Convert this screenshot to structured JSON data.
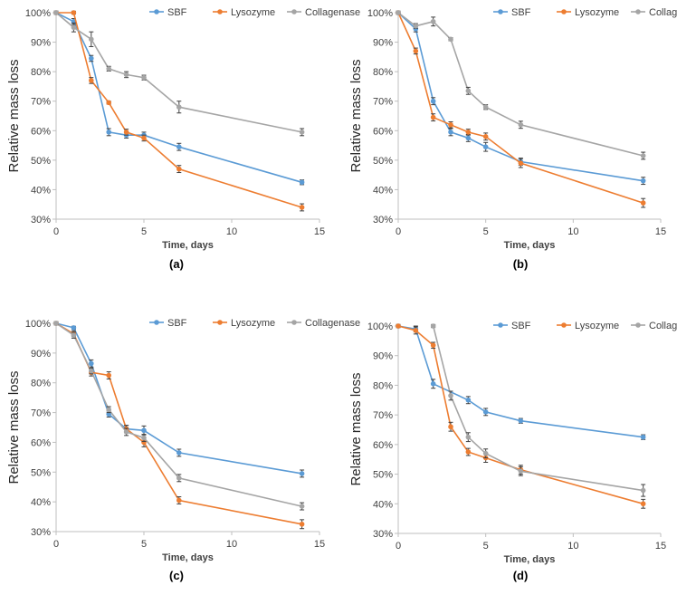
{
  "figure": {
    "colors": {
      "SBF": "#5B9BD5",
      "Lysozyme": "#ED7D31",
      "Collagenase": "#A5A5A5"
    }
  },
  "chart_data": [
    {
      "type": "line",
      "panel_label": "(a)",
      "xlabel": "Time, days",
      "ylabel": "Relative mass loss",
      "xlim": [
        0,
        15
      ],
      "ylim": [
        30,
        100
      ],
      "xticks": [
        "0",
        "5",
        "10",
        "15"
      ],
      "yticks": [
        "30%",
        "40%",
        "50%",
        "60%",
        "70%",
        "80%",
        "90%",
        "100%"
      ],
      "legend": [
        "SBF",
        "Lysozyme",
        "Collagenase"
      ],
      "series": [
        {
          "name": "SBF",
          "x": [
            0,
            1,
            2,
            3,
            4,
            5,
            7,
            14
          ],
          "values": [
            100,
            97,
            84.5,
            59.5,
            58.5,
            58.5,
            54.5,
            42.5
          ],
          "errors": [
            0.5,
            1,
            1,
            1.2,
            1,
            1,
            1.2,
            0.8
          ]
        },
        {
          "name": "Lysozyme",
          "x": [
            0,
            1,
            2,
            3,
            4,
            5,
            7,
            14
          ],
          "values": [
            100,
            100,
            77,
            69.5,
            59.5,
            57.5,
            47,
            34
          ],
          "errors": [
            0.5,
            0.5,
            1,
            0.5,
            1,
            1,
            1.2,
            1.2
          ]
        },
        {
          "name": "Collagenase",
          "x": [
            0,
            1,
            2,
            3,
            4,
            5,
            7,
            14
          ],
          "values": [
            100,
            95,
            91,
            81,
            79,
            78,
            68,
            59.5
          ],
          "errors": [
            0.5,
            1.5,
            2.5,
            0.8,
            1,
            0.8,
            2,
            1.2
          ]
        }
      ]
    },
    {
      "type": "line",
      "panel_label": "(b)",
      "xlabel": "Time, days",
      "ylabel": "Relative mass loss",
      "xlim": [
        0,
        15
      ],
      "ylim": [
        30,
        100
      ],
      "xticks": [
        "0",
        "5",
        "10",
        "15"
      ],
      "yticks": [
        "30%",
        "40%",
        "50%",
        "60%",
        "70%",
        "80%",
        "90%",
        "100%"
      ],
      "legend": [
        "SBF",
        "Lysozyme",
        "Collagenase"
      ],
      "series": [
        {
          "name": "SBF",
          "x": [
            0,
            1,
            2,
            3,
            4,
            5,
            7,
            14
          ],
          "values": [
            100,
            94.5,
            70,
            59.5,
            57.5,
            54.5,
            49.5,
            43
          ],
          "errors": [
            0.5,
            1,
            1.2,
            1.2,
            1.2,
            1.5,
            1.2,
            1.2
          ]
        },
        {
          "name": "Lysozyme",
          "x": [
            0,
            1,
            2,
            3,
            4,
            5,
            7,
            14
          ],
          "values": [
            100,
            87,
            64.5,
            62,
            59.5,
            58,
            49,
            35.5
          ],
          "errors": [
            0.5,
            1,
            1.2,
            1,
            1,
            1.2,
            1.5,
            1.5
          ]
        },
        {
          "name": "Collagenase",
          "x": [
            0,
            1,
            2,
            3,
            4,
            5,
            7,
            14
          ],
          "values": [
            100,
            95.5,
            97,
            91,
            73.5,
            68,
            62,
            51.5
          ],
          "errors": [
            0.5,
            0.8,
            1.5,
            0.5,
            1.2,
            0.8,
            1.2,
            1.2
          ]
        }
      ]
    },
    {
      "type": "line",
      "panel_label": "(c)",
      "xlabel": "Time, days",
      "ylabel": "Relative mass loss",
      "xlim": [
        0,
        15
      ],
      "ylim": [
        30,
        100
      ],
      "xticks": [
        "0",
        "5",
        "10",
        "15"
      ],
      "yticks": [
        "30%",
        "40%",
        "50%",
        "60%",
        "70%",
        "80%",
        "90%",
        "100%"
      ],
      "legend": [
        "SBF",
        "Lysozyme",
        "Collagenase"
      ],
      "series": [
        {
          "name": "SBF",
          "x": [
            0,
            1,
            2,
            3,
            4,
            5,
            7,
            14
          ],
          "values": [
            100,
            98.5,
            86.5,
            69.5,
            64.5,
            64,
            56.5,
            49.5
          ],
          "errors": [
            0.5,
            0.5,
            1.2,
            1,
            1.2,
            1.5,
            1.2,
            1.2
          ]
        },
        {
          "name": "Lysozyme",
          "x": [
            0,
            1,
            2,
            3,
            4,
            5,
            7,
            14
          ],
          "values": [
            100,
            96.5,
            83.5,
            82.5,
            64.5,
            60,
            40.5,
            32.5
          ],
          "errors": [
            0.5,
            1,
            1.2,
            1.2,
            1.2,
            1.5,
            1.2,
            1.5
          ]
        },
        {
          "name": "Collagenase",
          "x": [
            0,
            1,
            2,
            3,
            4,
            5,
            7,
            14
          ],
          "values": [
            100,
            96,
            84,
            71,
            63.5,
            61.5,
            48,
            38.5
          ],
          "errors": [
            0.5,
            1,
            1,
            1,
            1.2,
            1.2,
            1.2,
            1.2
          ]
        }
      ]
    },
    {
      "type": "line",
      "panel_label": "(d)",
      "xlabel": "Time, days",
      "ylabel": "Relative mass loss",
      "xlim": [
        0,
        15
      ],
      "ylim": [
        30,
        100
      ],
      "xticks": [
        "0",
        "5",
        "10",
        "15"
      ],
      "yticks": [
        "30%",
        "40%",
        "50%",
        "60%",
        "70%",
        "80%",
        "90%",
        "100%"
      ],
      "legend": [
        "SBF",
        "Lysozyme",
        "Collagenase"
      ],
      "series": [
        {
          "name": "SBF",
          "x": [
            0,
            1,
            2,
            4,
            5,
            7,
            14
          ],
          "values": [
            100,
            99,
            80.5,
            75,
            71,
            68,
            62.5
          ],
          "errors": [
            0.5,
            1,
            1.5,
            1.2,
            1.2,
            0.8,
            0.8
          ]
        },
        {
          "name": "Lysozyme",
          "x": [
            0,
            1,
            2,
            3,
            4,
            5,
            7,
            14
          ],
          "values": [
            100,
            98.5,
            93.5,
            66,
            57.5,
            55.5,
            51.5,
            40
          ],
          "errors": [
            0.5,
            1.2,
            1,
            1.5,
            1.2,
            1.5,
            1.5,
            1.5
          ]
        },
        {
          "name": "Collagenase",
          "x": [
            2,
            3,
            4,
            5,
            7,
            14
          ],
          "values": [
            100,
            76.5,
            62.5,
            57,
            51,
            44.5
          ],
          "errors": [
            0.5,
            1.5,
            1.5,
            1.5,
            1.5,
            2
          ]
        }
      ]
    }
  ]
}
